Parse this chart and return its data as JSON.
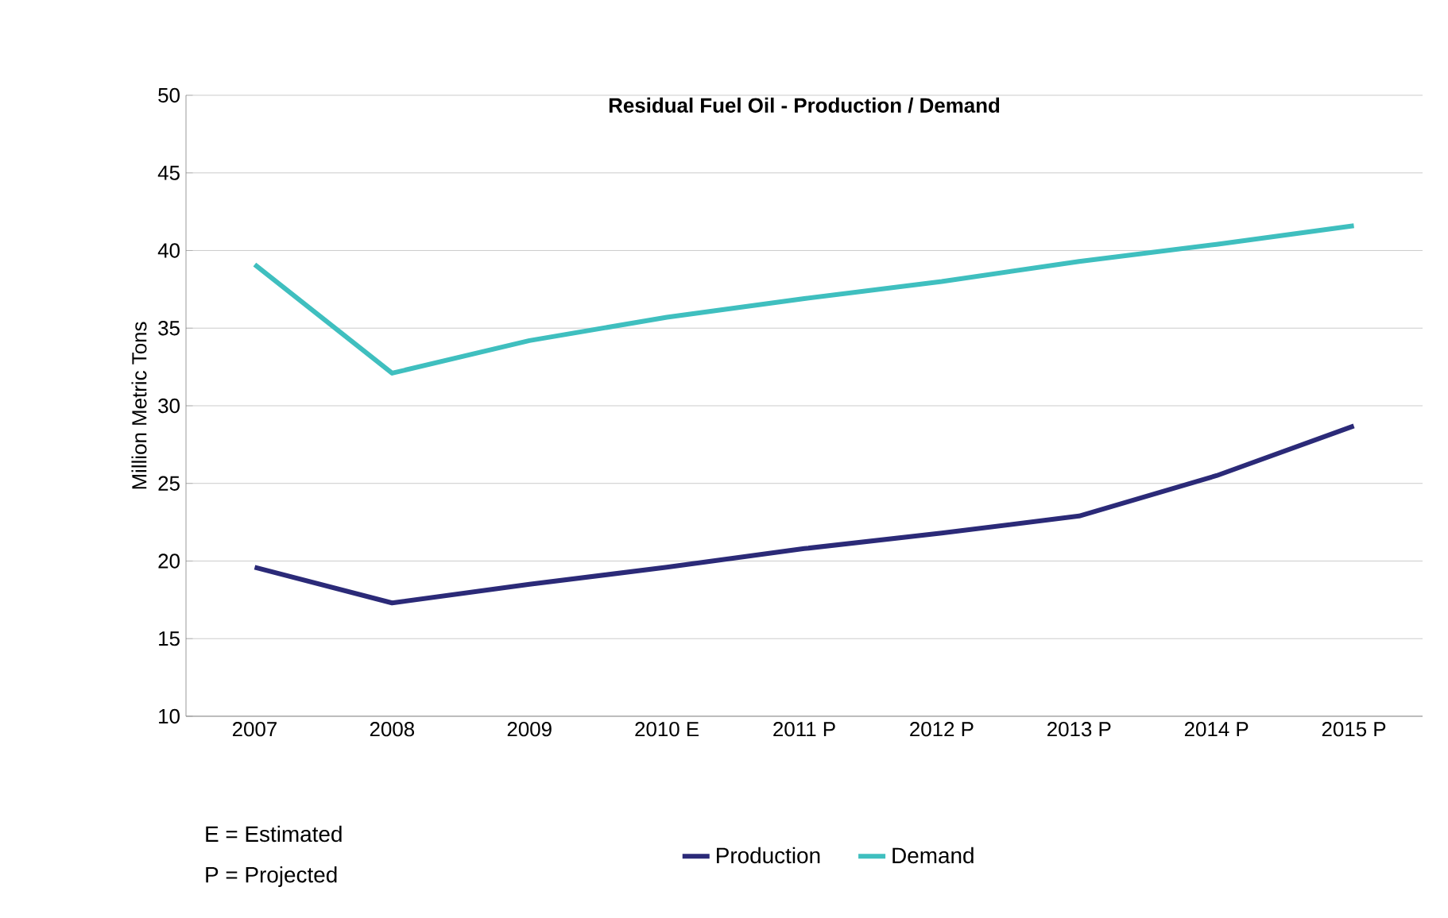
{
  "chart_data": {
    "type": "line",
    "title": "Residual Fuel Oil - Production / Demand",
    "ylabel": "Million Metric Tons",
    "categories": [
      "2007",
      "2008",
      "2009",
      "2010 E",
      "2011 P",
      "2012 P",
      "2013 P",
      "2014 P",
      "2015 P"
    ],
    "series": [
      {
        "name": "Production",
        "color": "#2b2a78",
        "values": [
          19.6,
          17.3,
          18.5,
          19.6,
          20.8,
          21.8,
          22.9,
          25.5,
          28.7
        ]
      },
      {
        "name": "Demand",
        "color": "#3fbfbf",
        "values": [
          39.1,
          32.1,
          34.2,
          35.7,
          36.9,
          38.0,
          39.3,
          40.4,
          41.6
        ]
      }
    ],
    "ylim": [
      10,
      50
    ],
    "yticks": [
      10,
      15,
      20,
      25,
      30,
      35,
      40,
      45,
      50
    ],
    "grid": "y",
    "legend": "bottom",
    "line_style": "solid",
    "annotations": [
      "E = Estimated",
      "P = Projected"
    ]
  }
}
